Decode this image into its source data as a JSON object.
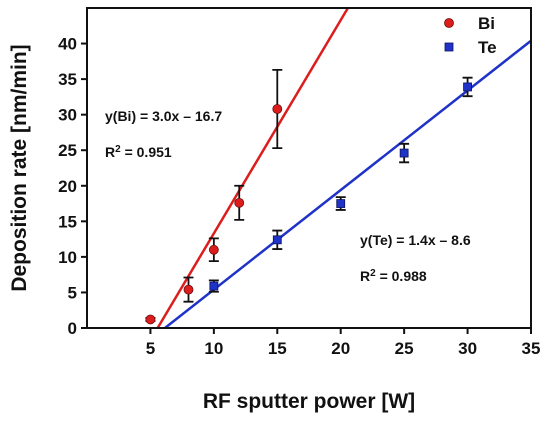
{
  "chart_data": {
    "type": "scatter",
    "xlabel": "RF sputter power [W]",
    "ylabel": "Deposition rate [nm/min]",
    "xlim": [
      0,
      35
    ],
    "ylim": [
      0,
      45
    ],
    "xticks": [
      "5",
      "10",
      "15",
      "20",
      "25",
      "30",
      "35"
    ],
    "yticks": [
      "0",
      "5",
      "10",
      "15",
      "20",
      "25",
      "30",
      "35",
      "40"
    ],
    "grid": false,
    "legend_position": "top-right",
    "series": [
      {
        "name": "Bi",
        "color": "#dd1c1c",
        "marker": "circle",
        "points": [
          {
            "x": 5,
            "y": 1.2,
            "err": 0.2
          },
          {
            "x": 8,
            "y": 5.4,
            "err": 1.7
          },
          {
            "x": 10,
            "y": 11.0,
            "err": 1.6
          },
          {
            "x": 12,
            "y": 17.6,
            "err": 2.4
          },
          {
            "x": 15,
            "y": 30.8,
            "err": 5.5
          }
        ],
        "fit": {
          "slope": 3.0,
          "intercept": -16.7
        }
      },
      {
        "name": "Te",
        "color": "#1f33c8",
        "marker": "square",
        "points": [
          {
            "x": 10,
            "y": 5.9,
            "err": 0.8
          },
          {
            "x": 15,
            "y": 12.4,
            "err": 1.3
          },
          {
            "x": 20,
            "y": 17.5,
            "err": 0.9
          },
          {
            "x": 25,
            "y": 24.6,
            "err": 1.3
          },
          {
            "x": 30,
            "y": 33.9,
            "err": 1.3
          }
        ],
        "fit": {
          "slope": 1.4,
          "intercept": -8.6
        }
      }
    ],
    "annotations": [
      {
        "id": "bi_eq",
        "text": "y(Bi) = 3.0x – 16.7"
      },
      {
        "id": "bi_r2",
        "base": "R",
        "sup": "2",
        "rest": " = 0.951"
      },
      {
        "id": "te_eq",
        "text": "y(Te) = 1.4x – 8.6"
      },
      {
        "id": "te_r2",
        "base": "R",
        "sup": "2",
        "rest": " = 0.988"
      }
    ]
  }
}
